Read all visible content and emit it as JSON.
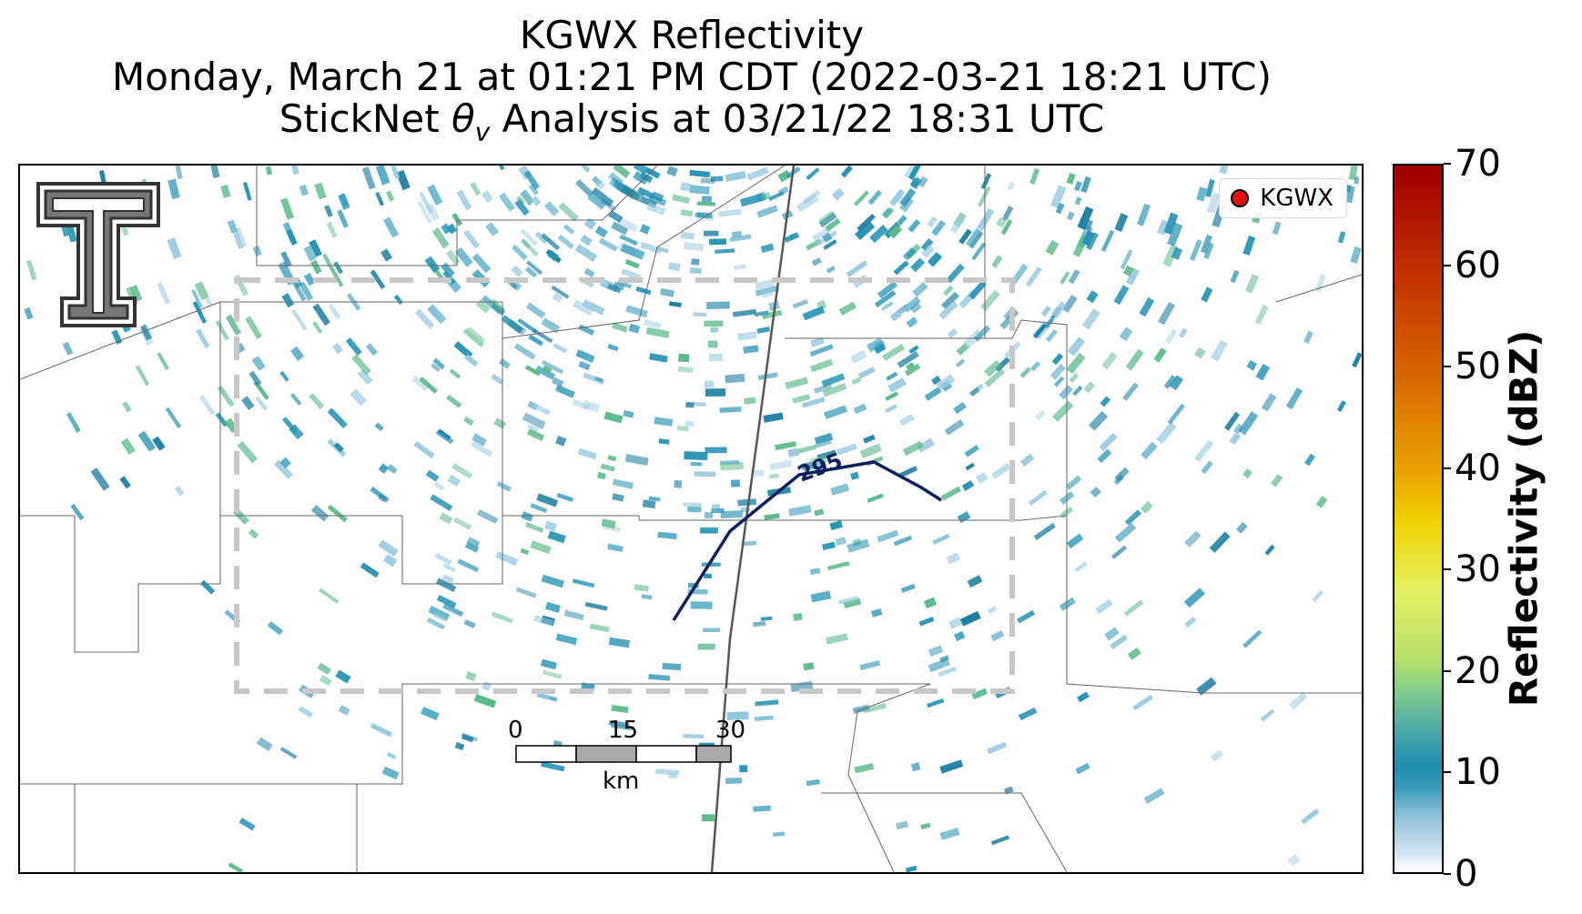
{
  "title": {
    "line1": "KGWX Reflectivity",
    "line2": "Monday, March 21 at 01:21 PM CDT (2022-03-21 18:21 UTC)",
    "line3_prefix": "StickNet ",
    "line3_symbol": "θ",
    "line3_subscript": "v",
    "line3_suffix": " Analysis at 03/21/22 18:31 UTC"
  },
  "legend": {
    "label": "KGWX",
    "marker_color": "#e01010"
  },
  "colorbar": {
    "label": "Reflectivity (dBZ)",
    "ticks": [
      "0",
      "10",
      "20",
      "30",
      "40",
      "50",
      "60",
      "70"
    ],
    "range": [
      0,
      70
    ]
  },
  "contour": {
    "label": "295",
    "color": "#0d1f5c"
  },
  "scalebar": {
    "ticks": [
      "0",
      "15",
      "30"
    ],
    "unit": "km"
  },
  "logo": {
    "name": "Texas Tech double-T logo"
  },
  "colors": {
    "echo_primary": "#2a94b4",
    "echo_light": "#9ccbe0",
    "echo_green": "#5bb88a",
    "analysis_box": "#c8c8c8"
  }
}
